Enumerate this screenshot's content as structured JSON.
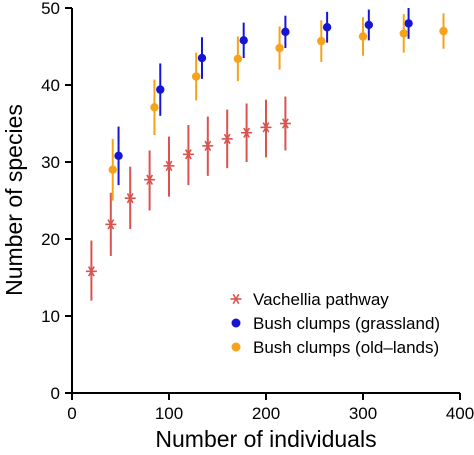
{
  "chart_data": {
    "type": "scatter",
    "title": "",
    "xlabel": "Number of individuals",
    "ylabel": "Number of species",
    "xlim": [
      0,
      400
    ],
    "ylim": [
      0,
      50
    ],
    "xticks": [
      0,
      100,
      200,
      300,
      400
    ],
    "yticks": [
      0,
      10,
      20,
      30,
      40,
      50
    ],
    "grid": false,
    "legend_position": "bottom-right",
    "series": [
      {
        "name": "Vachellia pathway",
        "marker": "asterisk",
        "color": "#d9534f",
        "points": [
          {
            "x": 20,
            "y": 15.8,
            "low": 12.0,
            "high": 19.8
          },
          {
            "x": 40,
            "y": 21.9,
            "low": 17.8,
            "high": 26.0
          },
          {
            "x": 60,
            "y": 25.3,
            "low": 21.3,
            "high": 29.4
          },
          {
            "x": 80,
            "y": 27.7,
            "low": 23.7,
            "high": 31.5
          },
          {
            "x": 100,
            "y": 29.5,
            "low": 25.5,
            "high": 33.3
          },
          {
            "x": 120,
            "y": 31.0,
            "low": 27.0,
            "high": 34.8
          },
          {
            "x": 140,
            "y": 32.1,
            "low": 28.2,
            "high": 35.9
          },
          {
            "x": 160,
            "y": 33.0,
            "low": 29.2,
            "high": 36.8
          },
          {
            "x": 180,
            "y": 33.8,
            "low": 30.0,
            "high": 37.6
          },
          {
            "x": 200,
            "y": 34.5,
            "low": 30.6,
            "high": 38.1
          },
          {
            "x": 220,
            "y": 35.0,
            "low": 31.5,
            "high": 38.5
          }
        ]
      },
      {
        "name": "Bush clumps (grassland)",
        "marker": "circle",
        "color": "#1515d6",
        "points": [
          {
            "x": 48,
            "y": 30.8,
            "low": 27.0,
            "high": 34.6
          },
          {
            "x": 91,
            "y": 39.4,
            "low": 36.0,
            "high": 42.8
          },
          {
            "x": 134,
            "y": 43.5,
            "low": 40.8,
            "high": 46.2
          },
          {
            "x": 177,
            "y": 45.8,
            "low": 43.5,
            "high": 48.1
          },
          {
            "x": 220,
            "y": 46.9,
            "low": 44.8,
            "high": 49.0
          },
          {
            "x": 263,
            "y": 47.5,
            "low": 45.5,
            "high": 49.5
          },
          {
            "x": 306,
            "y": 47.8,
            "low": 45.8,
            "high": 49.8
          },
          {
            "x": 347,
            "y": 48.0,
            "low": 46.0,
            "high": 50.0
          }
        ]
      },
      {
        "name": "Bush clumps (old–lands)",
        "marker": "circle",
        "color": "#f5a31a",
        "points": [
          {
            "x": 42,
            "y": 29.0,
            "low": 25.0,
            "high": 33.0
          },
          {
            "x": 85,
            "y": 37.1,
            "low": 33.5,
            "high": 40.7
          },
          {
            "x": 128,
            "y": 41.1,
            "low": 38.0,
            "high": 44.2
          },
          {
            "x": 171,
            "y": 43.4,
            "low": 40.5,
            "high": 46.3
          },
          {
            "x": 214,
            "y": 44.8,
            "low": 42.0,
            "high": 47.6
          },
          {
            "x": 257,
            "y": 45.7,
            "low": 43.0,
            "high": 48.4
          },
          {
            "x": 300,
            "y": 46.3,
            "low": 43.8,
            "high": 48.8
          },
          {
            "x": 342,
            "y": 46.7,
            "low": 44.2,
            "high": 49.2
          },
          {
            "x": 383,
            "y": 47.0,
            "low": 44.7,
            "high": 49.3
          }
        ]
      }
    ]
  }
}
